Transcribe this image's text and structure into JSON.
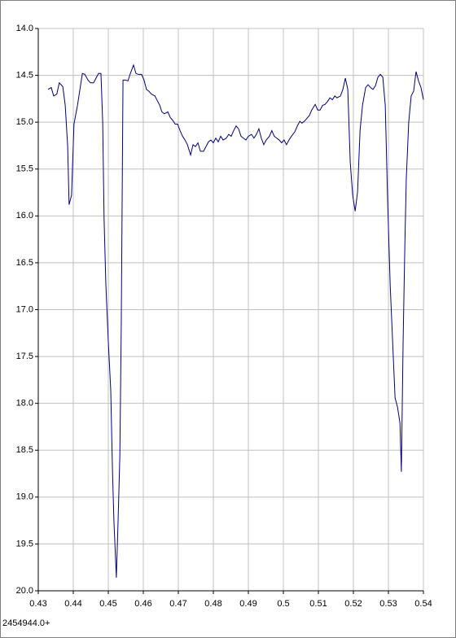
{
  "chart_data": {
    "type": "line",
    "annotation": "2454944.0+",
    "x": [
      0.4328,
      0.4337,
      0.4344,
      0.4353,
      0.436,
      0.437,
      0.4377,
      0.4384,
      0.4388,
      0.4395,
      0.4402,
      0.4412,
      0.4419,
      0.4426,
      0.4433,
      0.4442,
      0.4449,
      0.4458,
      0.4465,
      0.4472,
      0.4479,
      0.4484,
      0.4488,
      0.4493,
      0.45,
      0.4507,
      0.4512,
      0.4516,
      0.4523,
      0.4528,
      0.4533,
      0.4537,
      0.4542,
      0.4549,
      0.4556,
      0.4563,
      0.4572,
      0.4579,
      0.4586,
      0.4595,
      0.4602,
      0.4609,
      0.4616,
      0.4623,
      0.4633,
      0.464,
      0.4647,
      0.4653,
      0.466,
      0.467,
      0.4677,
      0.4684,
      0.4691,
      0.4698,
      0.4705,
      0.4712,
      0.4719,
      0.4726,
      0.4735,
      0.4742,
      0.4749,
      0.4756,
      0.4763,
      0.4772,
      0.4779,
      0.4786,
      0.4793,
      0.48,
      0.4807,
      0.4814,
      0.4821,
      0.4828,
      0.4837,
      0.4844,
      0.4851,
      0.4858,
      0.4865,
      0.4872,
      0.4879,
      0.4886,
      0.4893,
      0.49,
      0.4909,
      0.4916,
      0.4923,
      0.493,
      0.4937,
      0.4944,
      0.4951,
      0.496,
      0.4967,
      0.4974,
      0.4981,
      0.4988,
      0.4995,
      0.5002,
      0.5009,
      0.5016,
      0.5023,
      0.5033,
      0.504,
      0.5047,
      0.5053,
      0.506,
      0.5067,
      0.5074,
      0.5081,
      0.5091,
      0.5098,
      0.5105,
      0.5112,
      0.5119,
      0.5126,
      0.5133,
      0.514,
      0.5147,
      0.5153,
      0.5163,
      0.517,
      0.5177,
      0.5184,
      0.5191,
      0.5198,
      0.5205,
      0.5212,
      0.5219,
      0.5226,
      0.5235,
      0.5242,
      0.5249,
      0.5256,
      0.5263,
      0.527,
      0.5277,
      0.5284,
      0.5291,
      0.5298,
      0.5305,
      0.5312,
      0.5319,
      0.5326,
      0.5333,
      0.5337,
      0.5342,
      0.5347,
      0.5351,
      0.5358,
      0.5365,
      0.5372,
      0.5379,
      0.5386,
      0.5393,
      0.54
    ],
    "values": [
      14.65,
      14.63,
      14.72,
      14.7,
      14.58,
      14.62,
      14.82,
      15.26,
      15.88,
      15.78,
      15.02,
      14.82,
      14.65,
      14.48,
      14.49,
      14.55,
      14.58,
      14.58,
      14.53,
      14.48,
      14.48,
      15.0,
      16.04,
      16.73,
      17.34,
      17.86,
      18.73,
      19.25,
      19.86,
      19.25,
      18.56,
      17.17,
      14.55,
      14.55,
      14.56,
      14.48,
      14.39,
      14.48,
      14.49,
      14.49,
      14.55,
      14.65,
      14.67,
      14.7,
      14.72,
      14.77,
      14.82,
      14.89,
      14.91,
      14.89,
      14.95,
      14.98,
      15.02,
      15.02,
      15.09,
      15.15,
      15.19,
      15.24,
      15.35,
      15.24,
      15.26,
      15.22,
      15.31,
      15.31,
      15.26,
      15.21,
      15.19,
      15.22,
      15.17,
      15.21,
      15.15,
      15.19,
      15.17,
      15.13,
      15.15,
      15.09,
      15.04,
      15.07,
      15.15,
      15.17,
      15.19,
      15.15,
      15.13,
      15.17,
      15.13,
      15.07,
      15.17,
      15.24,
      15.19,
      15.15,
      15.09,
      15.15,
      15.17,
      15.19,
      15.22,
      15.19,
      15.24,
      15.19,
      15.15,
      15.1,
      15.04,
      14.99,
      15.01,
      14.99,
      14.96,
      14.93,
      14.87,
      14.81,
      14.87,
      14.87,
      14.82,
      14.81,
      14.78,
      14.74,
      14.76,
      14.72,
      14.74,
      14.72,
      14.65,
      14.53,
      14.65,
      15.43,
      15.78,
      15.95,
      15.74,
      15.09,
      14.82,
      14.63,
      14.6,
      14.63,
      14.65,
      14.61,
      14.52,
      14.49,
      14.52,
      14.82,
      15.87,
      16.73,
      17.34,
      17.94,
      18.04,
      18.21,
      18.73,
      17.34,
      16.3,
      15.61,
      15.0,
      14.72,
      14.67,
      14.46,
      14.56,
      14.63,
      14.76
    ],
    "color": "#000080",
    "xlim": [
      0.43,
      0.54
    ],
    "xticks": [
      0.43,
      0.44,
      0.45,
      0.46,
      0.47,
      0.48,
      0.49,
      0.5,
      0.51,
      0.52,
      0.53,
      0.54
    ],
    "ylim": [
      14,
      20
    ],
    "y_inverted": true,
    "yticks": [
      {
        "value": 14,
        "label": "14.0"
      },
      14.5,
      {
        "value": 15,
        "label": "15.0"
      },
      15.5,
      {
        "value": 16,
        "label": "16.0"
      },
      16.5,
      {
        "value": 17,
        "label": "17.0"
      },
      17.5,
      {
        "value": 18,
        "label": "18.0"
      },
      18.5,
      {
        "value": 19,
        "label": "19.0"
      },
      19.5,
      {
        "value": 20,
        "label": "20.0"
      }
    ],
    "grid": true
  }
}
